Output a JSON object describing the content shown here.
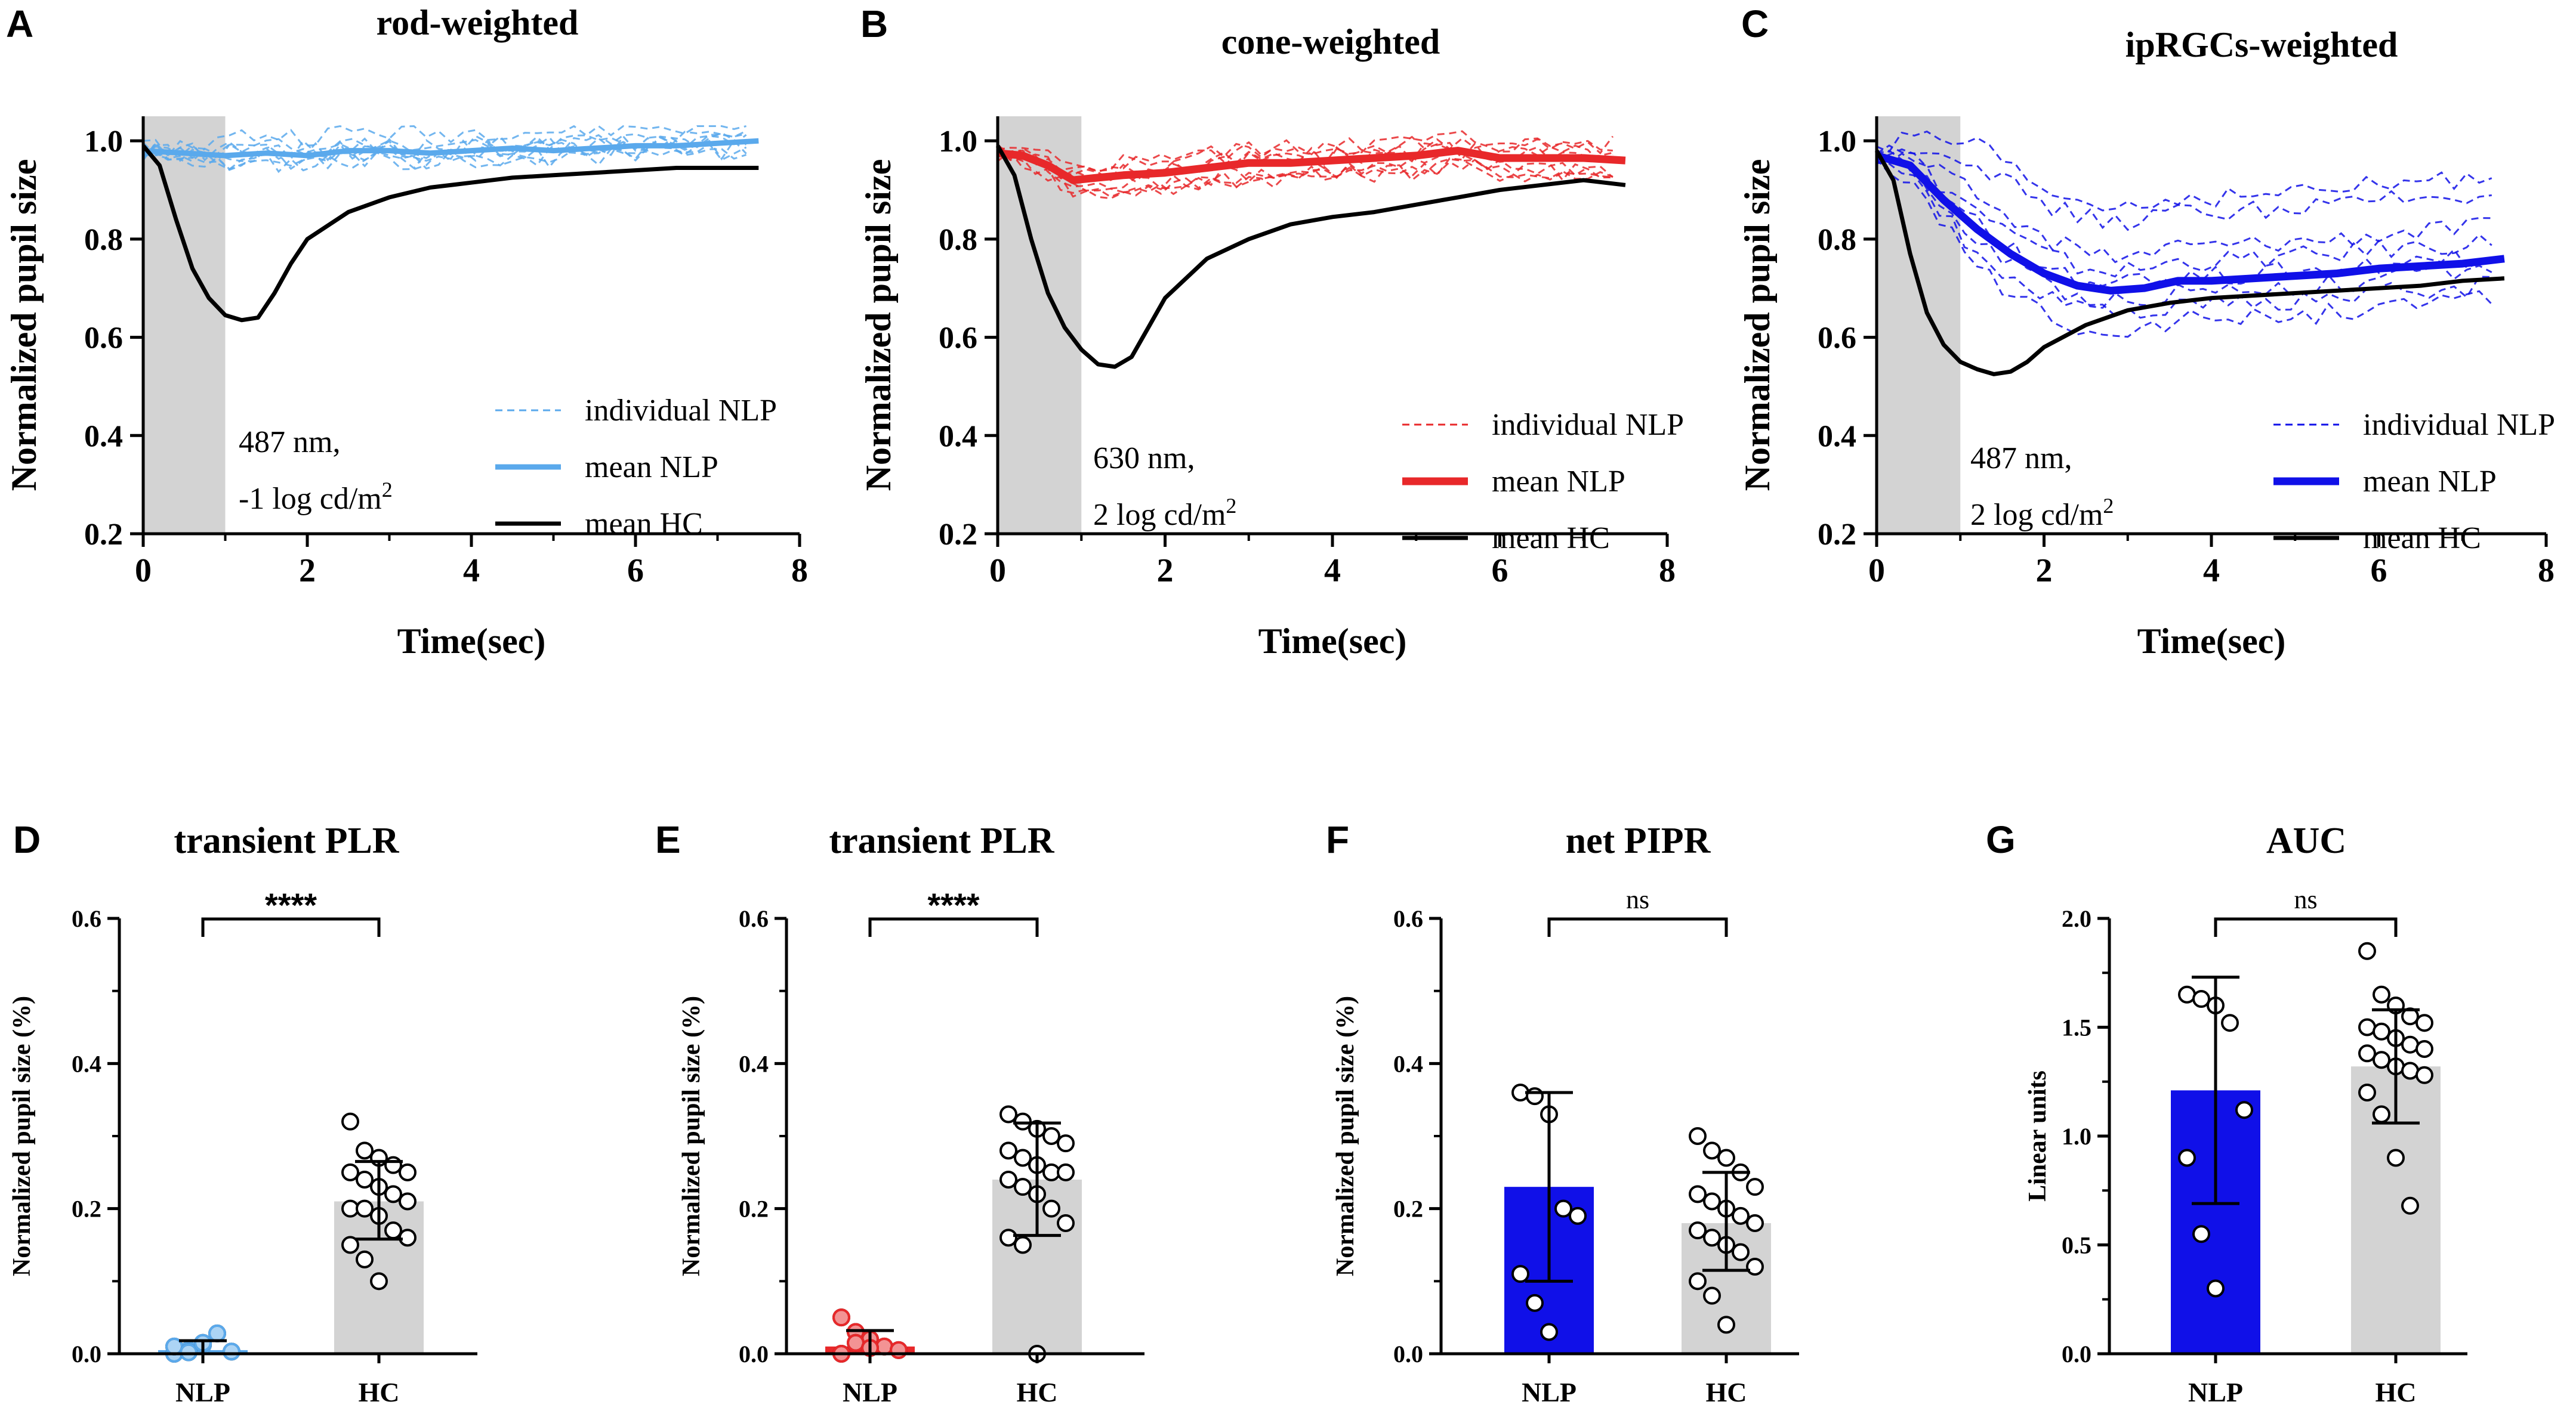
{
  "panels": {
    "A": {
      "letter": "A",
      "title": "rod-weighted",
      "ylabel": "Normalized pupil size",
      "xlabel": "Time(sec)",
      "note1": "487 nm,",
      "note2": "-1 log cd/m",
      "note2_sup": "2",
      "legend": [
        "individual NLP",
        "mean NLP",
        "mean HC"
      ]
    },
    "B": {
      "letter": "B",
      "title": "cone-weighted",
      "ylabel": "Normalized pupil size",
      "xlabel": "Time(sec)",
      "note1": "630 nm,",
      "note2": "2 log cd/m",
      "note2_sup": "2",
      "legend": [
        "individual NLP",
        "mean NLP",
        "mean HC"
      ]
    },
    "C": {
      "letter": "C",
      "title": "ipRGCs-weighted",
      "ylabel": "Normalized pupil size",
      "xlabel": "Time(sec)",
      "note1": "487 nm,",
      "note2": "2 log cd/m",
      "note2_sup": "2",
      "legend": [
        "individual NLP",
        "mean NLP",
        " mean HC"
      ]
    },
    "D": {
      "letter": "D",
      "title": "transient PLR",
      "ylabel": "Normalized pupil size (%)",
      "sig": "****"
    },
    "E": {
      "letter": "E",
      "title": "transient PLR",
      "ylabel": "Normalized pupil size (%)",
      "sig": "****"
    },
    "F": {
      "letter": "F",
      "title": "net PIPR",
      "ylabel": "Normalized pupil size (%)",
      "sig": "ns"
    },
    "G": {
      "letter": "G",
      "title": "AUC",
      "ylabel": "Linear units",
      "sig": "ns"
    }
  },
  "colors": {
    "light_blue": "#5aa9ec",
    "red": "#e8282a",
    "blue": "#1010e8",
    "black": "#000000",
    "gray": "#d3d3d3"
  },
  "chart_data": [
    {
      "id": "A",
      "type": "line",
      "title": "rod-weighted",
      "xlabel": "Time(sec)",
      "ylabel": "Normalized pupil size",
      "xlim": [
        0,
        8
      ],
      "ylim": [
        0.2,
        1.05
      ],
      "xticks": [
        0,
        2,
        4,
        6,
        8
      ],
      "yticks": [
        0.2,
        0.4,
        0.6,
        0.8,
        1.0
      ],
      "stimulus_window": [
        0,
        1
      ],
      "series": [
        {
          "name": "mean NLP",
          "x": [
            0,
            0.5,
            1,
            1.5,
            2,
            2.5,
            3,
            3.5,
            4,
            4.5,
            5,
            5.5,
            6,
            6.5,
            7,
            7.5
          ],
          "y": [
            0.98,
            0.975,
            0.97,
            0.975,
            0.97,
            0.98,
            0.98,
            0.975,
            0.98,
            0.985,
            0.98,
            0.985,
            0.99,
            0.99,
            0.995,
            1.0
          ]
        },
        {
          "name": "mean HC",
          "x": [
            0,
            0.2,
            0.4,
            0.6,
            0.8,
            1.0,
            1.2,
            1.4,
            1.6,
            1.8,
            2.0,
            2.5,
            3,
            3.5,
            4,
            4.5,
            5,
            5.5,
            6,
            6.5,
            7,
            7.5
          ],
          "y": [
            0.99,
            0.95,
            0.84,
            0.74,
            0.68,
            0.645,
            0.635,
            0.64,
            0.69,
            0.75,
            0.8,
            0.855,
            0.885,
            0.905,
            0.915,
            0.925,
            0.93,
            0.935,
            0.94,
            0.945,
            0.945,
            0.945
          ]
        }
      ]
    },
    {
      "id": "B",
      "type": "line",
      "title": "cone-weighted",
      "xlabel": "Time(sec)",
      "ylabel": "Normalized pupil size",
      "xlim": [
        0,
        8
      ],
      "ylim": [
        0.2,
        1.05
      ],
      "xticks": [
        0,
        2,
        4,
        6,
        8
      ],
      "yticks": [
        0.2,
        0.4,
        0.6,
        0.8,
        1.0
      ],
      "stimulus_window": [
        0,
        1
      ],
      "series": [
        {
          "name": "mean NLP",
          "x": [
            0,
            0.3,
            0.6,
            0.9,
            1.2,
            1.5,
            2,
            2.5,
            3,
            3.5,
            4,
            4.5,
            5,
            5.5,
            6,
            6.5,
            7,
            7.5
          ],
          "y": [
            0.975,
            0.97,
            0.95,
            0.92,
            0.925,
            0.93,
            0.935,
            0.945,
            0.955,
            0.955,
            0.96,
            0.965,
            0.97,
            0.98,
            0.965,
            0.965,
            0.965,
            0.96
          ]
        },
        {
          "name": "mean HC",
          "x": [
            0,
            0.2,
            0.4,
            0.6,
            0.8,
            1.0,
            1.2,
            1.4,
            1.6,
            1.8,
            2.0,
            2.5,
            3,
            3.5,
            4,
            4.5,
            5,
            5.5,
            6,
            6.5,
            7,
            7.5
          ],
          "y": [
            0.99,
            0.93,
            0.8,
            0.69,
            0.62,
            0.575,
            0.545,
            0.54,
            0.56,
            0.62,
            0.68,
            0.76,
            0.8,
            0.83,
            0.845,
            0.855,
            0.87,
            0.885,
            0.9,
            0.91,
            0.92,
            0.91
          ]
        }
      ]
    },
    {
      "id": "C",
      "type": "line",
      "title": "ipRGCs-weighted",
      "xlabel": "Time(sec)",
      "ylabel": "Normalized pupil size",
      "xlim": [
        0,
        8
      ],
      "ylim": [
        0.2,
        1.05
      ],
      "xticks": [
        0,
        2,
        4,
        6,
        8
      ],
      "yticks": [
        0.2,
        0.4,
        0.6,
        0.8,
        1.0
      ],
      "stimulus_window": [
        0,
        1
      ],
      "series": [
        {
          "name": "mean NLP",
          "x": [
            0,
            0.4,
            0.8,
            1.2,
            1.6,
            2.0,
            2.4,
            2.8,
            3.2,
            3.6,
            4,
            4.5,
            5,
            5.5,
            6,
            6.5,
            7,
            7.5
          ],
          "y": [
            0.97,
            0.95,
            0.88,
            0.82,
            0.77,
            0.73,
            0.705,
            0.695,
            0.7,
            0.715,
            0.715,
            0.72,
            0.725,
            0.73,
            0.74,
            0.745,
            0.75,
            0.76
          ]
        },
        {
          "name": "mean HC",
          "x": [
            0,
            0.2,
            0.4,
            0.6,
            0.8,
            1.0,
            1.2,
            1.4,
            1.6,
            1.8,
            2.0,
            2.5,
            3,
            3.5,
            4,
            4.5,
            5,
            5.5,
            6,
            6.5,
            7,
            7.5
          ],
          "y": [
            0.98,
            0.92,
            0.77,
            0.65,
            0.585,
            0.55,
            0.535,
            0.525,
            0.53,
            0.55,
            0.58,
            0.625,
            0.655,
            0.67,
            0.68,
            0.685,
            0.69,
            0.695,
            0.7,
            0.705,
            0.715,
            0.72
          ]
        }
      ]
    },
    {
      "id": "D",
      "type": "bar",
      "title": "transient PLR",
      "ylabel": "Normalized pupil size (%)",
      "categories": [
        "NLP",
        "HC"
      ],
      "ylim": [
        0,
        0.6
      ],
      "yticks": [
        0.0,
        0.2,
        0.4,
        0.6
      ],
      "ytick_labels": [
        "0.0",
        "0.2",
        "0.4",
        "0.6"
      ],
      "means": [
        0.005,
        0.21
      ],
      "sd_upper": [
        0.018,
        0.265
      ],
      "sd_lower": [
        0.0,
        0.158
      ],
      "points": [
        [
          0.0,
          0.005,
          0.012,
          0.028,
          0.003,
          0.01,
          0.002,
          0.015
        ],
        [
          0.32,
          0.28,
          0.27,
          0.26,
          0.25,
          0.25,
          0.24,
          0.23,
          0.22,
          0.21,
          0.2,
          0.2,
          0.19,
          0.17,
          0.16,
          0.15,
          0.13,
          0.1
        ]
      ],
      "significance": "****"
    },
    {
      "id": "E",
      "type": "bar",
      "title": "transient PLR",
      "ylabel": "Normalized pupil size (%)",
      "categories": [
        "NLP",
        "HC"
      ],
      "ylim": [
        0,
        0.6
      ],
      "yticks": [
        0.0,
        0.2,
        0.4,
        0.6
      ],
      "ytick_labels": [
        "0.0",
        "0.2",
        "0.4",
        "0.6"
      ],
      "means": [
        0.01,
        0.24
      ],
      "sd_upper": [
        0.032,
        0.318
      ],
      "sd_lower": [
        0.0,
        0.163
      ],
      "points": [
        [
          0.05,
          0.03,
          0.02,
          0.01,
          0.005,
          0.0,
          0.015,
          0.008
        ],
        [
          0.33,
          0.32,
          0.31,
          0.3,
          0.29,
          0.28,
          0.27,
          0.26,
          0.25,
          0.25,
          0.24,
          0.23,
          0.22,
          0.2,
          0.18,
          0.16,
          0.15,
          0.0
        ]
      ],
      "significance": "****"
    },
    {
      "id": "F",
      "type": "bar",
      "title": "net PIPR",
      "ylabel": "Normalized pupil size (%)",
      "categories": [
        "NLP",
        "HC"
      ],
      "ylim": [
        0,
        0.6
      ],
      "yticks": [
        0.0,
        0.2,
        0.4,
        0.6
      ],
      "ytick_labels": [
        "0.0",
        "0.2",
        "0.4",
        "0.6"
      ],
      "means": [
        0.23,
        0.18
      ],
      "sd_upper": [
        0.36,
        0.25
      ],
      "sd_lower": [
        0.1,
        0.115
      ],
      "points": [
        [
          0.36,
          0.355,
          0.33,
          0.2,
          0.19,
          0.11,
          0.07,
          0.03
        ],
        [
          0.3,
          0.28,
          0.27,
          0.25,
          0.23,
          0.22,
          0.21,
          0.2,
          0.19,
          0.18,
          0.17,
          0.16,
          0.15,
          0.14,
          0.12,
          0.1,
          0.08,
          0.04
        ]
      ],
      "significance": "ns"
    },
    {
      "id": "G",
      "type": "bar",
      "title": "AUC",
      "ylabel": "Linear units",
      "categories": [
        "NLP",
        "HC"
      ],
      "ylim": [
        0,
        2.0
      ],
      "yticks": [
        0.0,
        0.5,
        1.0,
        1.5,
        2.0
      ],
      "ytick_labels": [
        "0.0",
        "0.5",
        "1.0",
        "1.5",
        "2.0"
      ],
      "means": [
        1.21,
        1.32
      ],
      "sd_upper": [
        1.73,
        1.58
      ],
      "sd_lower": [
        0.69,
        1.06
      ],
      "points": [
        [
          1.65,
          1.63,
          1.6,
          1.52,
          1.12,
          0.9,
          0.55,
          0.3
        ],
        [
          1.85,
          1.65,
          1.6,
          1.55,
          1.52,
          1.5,
          1.48,
          1.45,
          1.42,
          1.4,
          1.38,
          1.35,
          1.32,
          1.3,
          1.28,
          1.2,
          1.1,
          0.9,
          0.68
        ]
      ],
      "significance": "ns"
    }
  ]
}
